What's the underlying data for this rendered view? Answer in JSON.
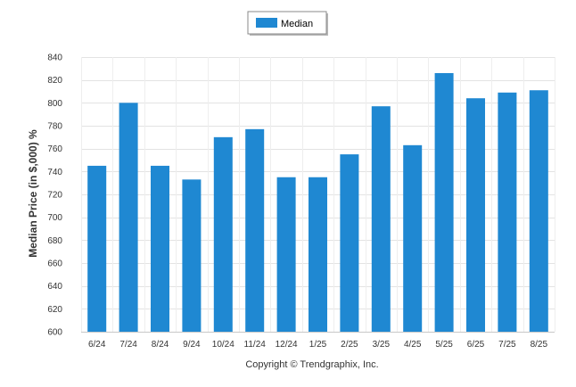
{
  "chart_data": {
    "type": "bar",
    "categories": [
      "6/24",
      "7/24",
      "8/24",
      "9/24",
      "10/24",
      "11/24",
      "12/24",
      "1/25",
      "2/25",
      "3/25",
      "4/25",
      "5/25",
      "6/25",
      "7/25",
      "8/25"
    ],
    "series": [
      {
        "name": "Median",
        "color": "#1f88d2",
        "values": [
          745,
          800,
          745,
          733,
          770,
          777,
          735,
          735,
          755,
          797,
          763,
          826,
          804,
          809,
          811
        ]
      }
    ],
    "ylabel": "Median Price (in $,000) %",
    "xlabel": "",
    "ylim": [
      600,
      840
    ],
    "yticks": [
      600,
      620,
      640,
      660,
      680,
      700,
      720,
      740,
      760,
      780,
      800,
      820,
      840
    ],
    "grid": true,
    "legend_position": "top-center"
  },
  "footer": {
    "copyright": "Copyright © Trendgraphix, Inc."
  }
}
